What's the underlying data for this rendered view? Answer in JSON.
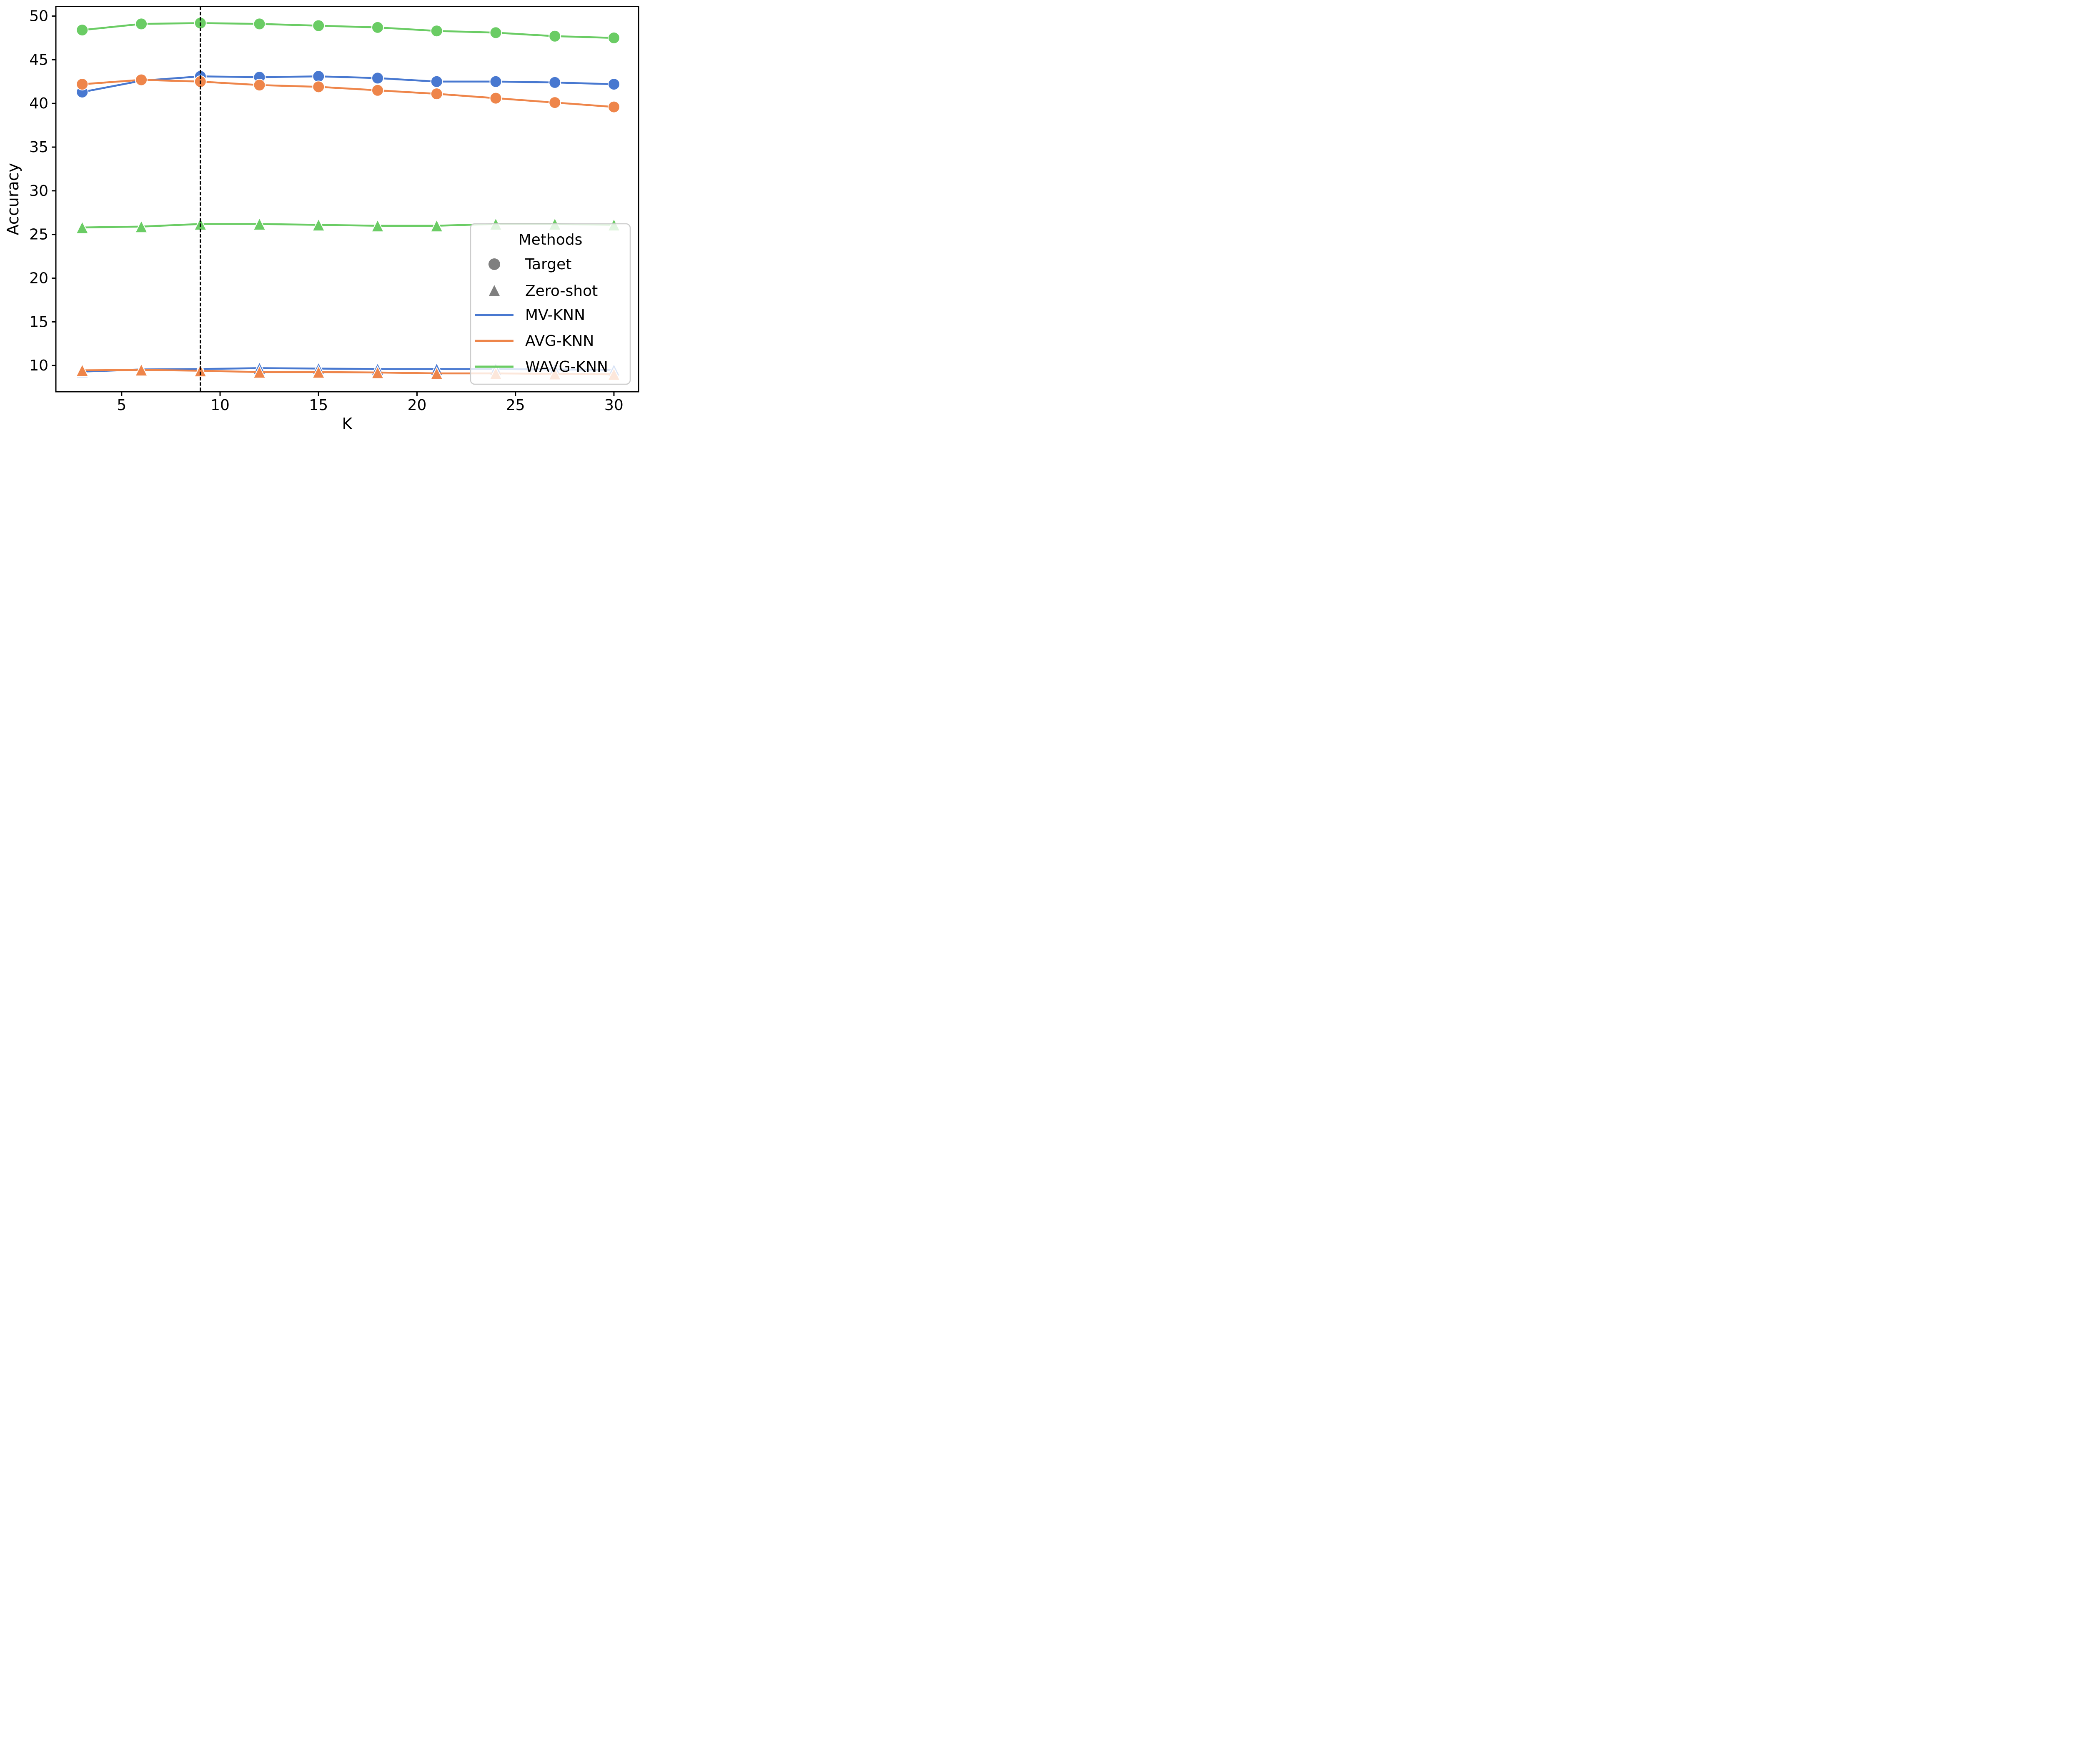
{
  "chart_data": {
    "type": "line",
    "title": "",
    "xlabel": "K",
    "ylabel": "Accuracy",
    "x": [
      3,
      6,
      9,
      12,
      15,
      18,
      21,
      24,
      27,
      30
    ],
    "x_ticks": [
      5,
      10,
      15,
      20,
      25,
      30
    ],
    "x_tick_labels": [
      "5",
      "10",
      "15",
      "20",
      "25",
      "30"
    ],
    "y_ticks": [
      10,
      15,
      20,
      25,
      30,
      35,
      40,
      45,
      50
    ],
    "y_tick_labels": [
      "10",
      "15",
      "20",
      "25",
      "30",
      "35",
      "40",
      "45",
      "50"
    ],
    "xlim": [
      1.66,
      31.25
    ],
    "ylim": [
      7.0,
      51.1
    ],
    "grid": false,
    "vline": {
      "x": 9,
      "style": "dashed",
      "color": "#000000"
    },
    "series": [
      {
        "name": "MV-KNN Target",
        "method": "MV-KNN",
        "group": "Target",
        "marker": "circle",
        "color": "#4878d0",
        "values": [
          41.3,
          42.6,
          43.1,
          43.0,
          43.1,
          42.9,
          42.5,
          42.5,
          42.4,
          42.2
        ]
      },
      {
        "name": "AVG-KNN Target",
        "method": "AVG-KNN",
        "group": "Target",
        "marker": "circle",
        "color": "#ee854a",
        "values": [
          42.2,
          42.7,
          42.5,
          42.1,
          41.9,
          41.5,
          41.1,
          40.6,
          40.1,
          39.6
        ]
      },
      {
        "name": "WAVG-KNN Target",
        "method": "WAVG-KNN",
        "group": "Target",
        "marker": "circle",
        "color": "#6acc64",
        "values": [
          48.4,
          49.1,
          49.2,
          49.1,
          48.9,
          48.7,
          48.3,
          48.1,
          47.7,
          47.5
        ]
      },
      {
        "name": "MV-KNN Zero-shot",
        "method": "MV-KNN",
        "group": "Zero-shot",
        "marker": "triangle",
        "color": "#4878d0",
        "values": [
          9.3,
          9.55,
          9.6,
          9.7,
          9.65,
          9.6,
          9.6,
          9.6,
          9.55,
          9.5
        ]
      },
      {
        "name": "AVG-KNN Zero-shot",
        "method": "AVG-KNN",
        "group": "Zero-shot",
        "marker": "triangle",
        "color": "#ee854a",
        "values": [
          9.45,
          9.5,
          9.4,
          9.25,
          9.25,
          9.2,
          9.1,
          9.1,
          9.05,
          9.0
        ]
      },
      {
        "name": "WAVG-KNN Zero-shot",
        "method": "WAVG-KNN",
        "group": "Zero-shot",
        "marker": "triangle",
        "color": "#6acc64",
        "values": [
          25.8,
          25.9,
          26.2,
          26.2,
          26.1,
          26.0,
          26.0,
          26.2,
          26.2,
          26.1
        ]
      }
    ],
    "legend": {
      "title": "Methods",
      "position": "lower right",
      "entries": [
        {
          "label": "Target",
          "swatch": "circle",
          "color": "#7f7f7f"
        },
        {
          "label": "Zero-shot",
          "swatch": "triangle",
          "color": "#7f7f7f"
        },
        {
          "label": "MV-KNN",
          "swatch": "line",
          "color": "#4878d0"
        },
        {
          "label": "AVG-KNN",
          "swatch": "line",
          "color": "#ee854a"
        },
        {
          "label": "WAVG-KNN",
          "swatch": "line",
          "color": "#6acc64"
        }
      ]
    },
    "colors": {
      "axis": "#000000",
      "legend_border": "#cccccc",
      "legend_bg_alpha": 0.8
    }
  }
}
